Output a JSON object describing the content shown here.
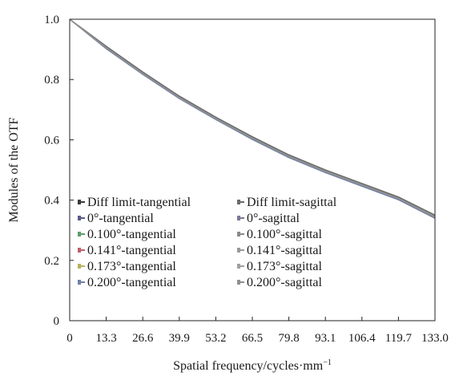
{
  "chart_data": {
    "type": "line",
    "xlabel": "Spatial frequency/cycles·mm",
    "xlabel_superscript": "−1",
    "ylabel": "Modules of the OTF",
    "xlim": [
      0,
      133.0
    ],
    "ylim": [
      0,
      1.0
    ],
    "x_ticks": [
      "0",
      "13.3",
      "26.6",
      "39.9",
      "53.2",
      "66.5",
      "79.8",
      "93.1",
      "106.4",
      "119.7",
      "133.0"
    ],
    "y_ticks": [
      "0",
      "0.2",
      "0.4",
      "0.6",
      "0.8",
      "1.0"
    ],
    "grid": false,
    "legend_position": "lower-left",
    "x": [
      0,
      13.3,
      26.6,
      39.9,
      53.2,
      66.5,
      79.8,
      93.1,
      106.4,
      119.7,
      133.0
    ],
    "series": [
      {
        "name": "Diff limit-tangential",
        "color": "#3a3a3a",
        "values": [
          1.0,
          0.91,
          0.825,
          0.745,
          0.675,
          0.61,
          0.55,
          0.5,
          0.455,
          0.41,
          0.35
        ]
      },
      {
        "name": "Diff limit-sagittal",
        "color": "#6b6b6b",
        "values": [
          1.0,
          0.91,
          0.825,
          0.745,
          0.675,
          0.61,
          0.55,
          0.5,
          0.455,
          0.41,
          0.35
        ]
      },
      {
        "name": "0°-tangential",
        "color": "#5a5a8a",
        "values": [
          1.0,
          0.905,
          0.82,
          0.74,
          0.67,
          0.605,
          0.545,
          0.495,
          0.45,
          0.405,
          0.345
        ]
      },
      {
        "name": "0°-sagittal",
        "color": "#7a7a9a",
        "values": [
          1.0,
          0.905,
          0.82,
          0.74,
          0.67,
          0.605,
          0.545,
          0.495,
          0.45,
          0.405,
          0.345
        ]
      },
      {
        "name": "0.100°-tangential",
        "color": "#5e9e6a",
        "values": [
          1.0,
          0.905,
          0.82,
          0.74,
          0.67,
          0.605,
          0.545,
          0.495,
          0.45,
          0.405,
          0.344
        ]
      },
      {
        "name": "0.100°-sagittal",
        "color": "#8a8a8a",
        "values": [
          1.0,
          0.906,
          0.821,
          0.741,
          0.671,
          0.606,
          0.546,
          0.496,
          0.451,
          0.406,
          0.346
        ]
      },
      {
        "name": "0.141°-tangential",
        "color": "#c0606a",
        "values": [
          1.0,
          0.903,
          0.818,
          0.738,
          0.668,
          0.602,
          0.542,
          0.492,
          0.447,
          0.402,
          0.34
        ]
      },
      {
        "name": "0.141°-sagittal",
        "color": "#9a9a9a",
        "values": [
          1.0,
          0.905,
          0.82,
          0.74,
          0.67,
          0.605,
          0.545,
          0.495,
          0.45,
          0.405,
          0.345
        ]
      },
      {
        "name": "0.173°-tangential",
        "color": "#b8b060",
        "values": [
          1.0,
          0.903,
          0.818,
          0.738,
          0.668,
          0.602,
          0.542,
          0.492,
          0.447,
          0.402,
          0.341
        ]
      },
      {
        "name": "0.173°-sagittal",
        "color": "#a0a0a0",
        "values": [
          1.0,
          0.905,
          0.82,
          0.74,
          0.67,
          0.605,
          0.545,
          0.495,
          0.45,
          0.405,
          0.345
        ]
      },
      {
        "name": "0.200°-tangential",
        "color": "#7080a8",
        "values": [
          1.0,
          0.902,
          0.817,
          0.737,
          0.667,
          0.601,
          0.541,
          0.491,
          0.446,
          0.401,
          0.34
        ]
      },
      {
        "name": "0.200°-sagittal",
        "color": "#909090",
        "values": [
          1.0,
          0.905,
          0.82,
          0.74,
          0.67,
          0.605,
          0.545,
          0.495,
          0.45,
          0.405,
          0.345
        ]
      }
    ]
  }
}
